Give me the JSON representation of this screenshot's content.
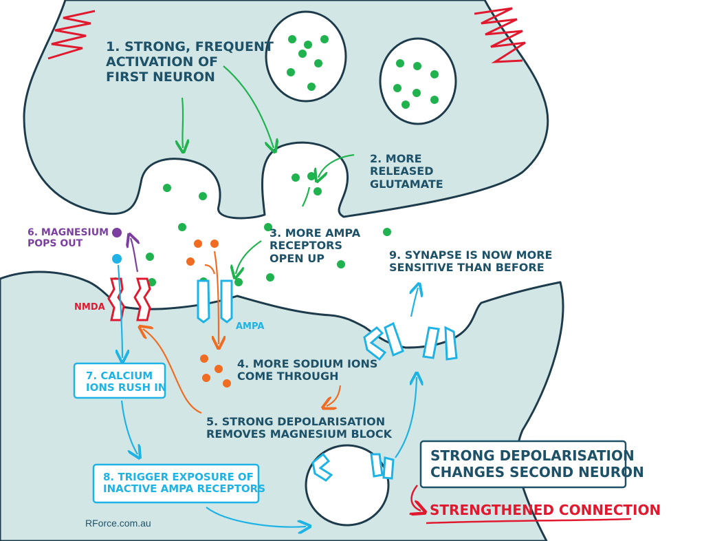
{
  "labels": {
    "step1": "1. STRONG, FREQUENT\nACTIVATION OF\nFIRST NEURON",
    "step2": "2. MORE\nRELEASED\nGLUTAMATE",
    "step3": "3. MORE AMPA\nRECEPTORS\nOPEN UP",
    "step4": "4. MORE SODIUM IONS\nCOME THROUGH",
    "step5": "5. STRONG DEPOLARISATION\nREMOVES MAGNESIUM BLOCK",
    "step6": "6. MAGNESIUM\nPOPS OUT",
    "step7": "7. CALCIUM\nIONS RUSH IN",
    "step8": "8. TRIGGER EXPOSURE OF\nINACTIVE AMPA RECEPTORS",
    "step9": "9. SYNAPSE IS NOW MORE\nSENSITIVE THAN BEFORE",
    "nmda": "NMDA",
    "ampa": "AMPA",
    "summary": "STRONG DEPOLARISATION\nCHANGES SECOND NEURON",
    "result": "STRENGTHENED CONNECTION",
    "website": "RForce.com.au"
  },
  "colors": {
    "membrane": "#d3e6e6",
    "outline": "#1d3b4b",
    "glutamate": "#20b24f",
    "sodium": "#ef6c22",
    "calcium": "#1fb2e4",
    "magnesium": "#7b3fa0",
    "nmda": "#e0192f",
    "ampa": "#1fb2e4",
    "arrow_green": "#20b24f",
    "text_dark": "#1d5168"
  }
}
